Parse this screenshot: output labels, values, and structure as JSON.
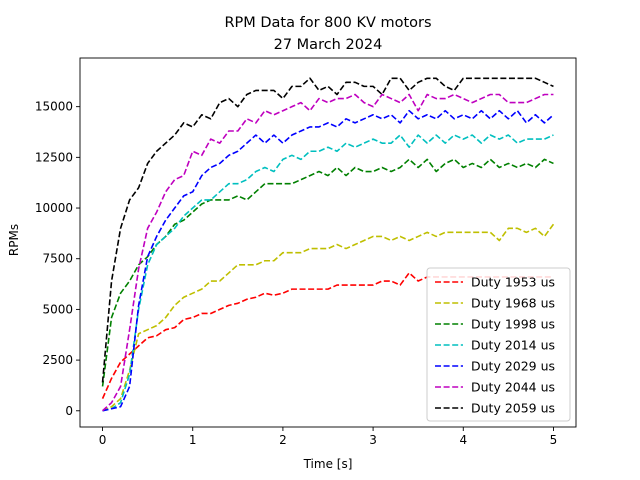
{
  "chart_data": {
    "type": "line",
    "title": "RPM Data for 800 KV motors",
    "subtitle": "27 March 2024",
    "xlabel": "Time [s]",
    "ylabel": "RPMs",
    "xlim": [
      -0.25,
      5.25
    ],
    "ylim": [
      -800,
      17400
    ],
    "x_ticks": [
      0,
      1,
      2,
      3,
      4,
      5
    ],
    "x_tick_labels": [
      "0",
      "1",
      "2",
      "3",
      "4",
      "5"
    ],
    "y_ticks": [
      0,
      2500,
      5000,
      7500,
      10000,
      12500,
      15000
    ],
    "y_tick_labels": [
      "0",
      "2500",
      "5000",
      "7500",
      "10000",
      "12500",
      "15000"
    ],
    "grid": false,
    "legend_position": "bottom-right",
    "line_style": "dashed",
    "x": [
      0,
      0.1,
      0.2,
      0.3,
      0.4,
      0.5,
      0.6,
      0.7,
      0.8,
      0.9,
      1.0,
      1.1,
      1.2,
      1.3,
      1.4,
      1.5,
      1.6,
      1.7,
      1.8,
      1.9,
      2.0,
      2.1,
      2.2,
      2.3,
      2.4,
      2.5,
      2.6,
      2.7,
      2.8,
      2.9,
      3.0,
      3.1,
      3.2,
      3.3,
      3.4,
      3.5,
      3.6,
      3.7,
      3.8,
      3.9,
      4.0,
      4.1,
      4.2,
      4.3,
      4.4,
      4.5,
      4.6,
      4.7,
      4.8,
      4.9,
      5.0
    ],
    "series": [
      {
        "name": "Duty 1953 us",
        "color": "#ff0000",
        "values": [
          600,
          1600,
          2400,
          2800,
          3200,
          3600,
          3700,
          4000,
          4100,
          4500,
          4600,
          4800,
          4800,
          5000,
          5200,
          5300,
          5500,
          5600,
          5800,
          5700,
          5800,
          6000,
          6000,
          6000,
          6000,
          6000,
          6200,
          6200,
          6200,
          6200,
          6200,
          6400,
          6400,
          6200,
          6800,
          6400,
          6600,
          6600,
          6600,
          6600,
          6600,
          6600,
          6600,
          6600,
          6600,
          6600,
          6600,
          6600,
          6600,
          6600,
          6600
        ]
      },
      {
        "name": "Duty 1968 us",
        "color": "#bfbf00",
        "values": [
          0,
          200,
          600,
          2000,
          3800,
          4000,
          4200,
          4600,
          5200,
          5600,
          5800,
          6000,
          6400,
          6400,
          6800,
          7200,
          7200,
          7200,
          7400,
          7400,
          7800,
          7800,
          7800,
          8000,
          8000,
          8000,
          8200,
          8000,
          8200,
          8400,
          8600,
          8600,
          8400,
          8600,
          8400,
          8600,
          8800,
          8600,
          8800,
          8800,
          8800,
          8800,
          8800,
          8800,
          8400,
          9000,
          9000,
          8800,
          9000,
          8600,
          9200
        ]
      },
      {
        "name": "Duty 1998 us",
        "color": "#008000",
        "values": [
          1200,
          4600,
          5800,
          6400,
          7200,
          7600,
          8200,
          8600,
          9200,
          9400,
          9800,
          10200,
          10400,
          10400,
          10400,
          10600,
          10400,
          10800,
          11200,
          11200,
          11200,
          11200,
          11400,
          11600,
          11800,
          11600,
          12000,
          11600,
          12000,
          11800,
          11800,
          12000,
          11800,
          12000,
          12400,
          12000,
          12400,
          11800,
          12200,
          12400,
          12000,
          12200,
          12000,
          12400,
          12000,
          12200,
          12000,
          12200,
          12000,
          12400,
          12200
        ]
      },
      {
        "name": "Duty 2014 us",
        "color": "#00bfbf",
        "values": [
          0,
          100,
          400,
          1800,
          5000,
          7200,
          8200,
          8600,
          9000,
          9600,
          10000,
          10400,
          10400,
          10800,
          11200,
          11200,
          11400,
          11800,
          12000,
          11800,
          12400,
          12600,
          12400,
          12800,
          12800,
          13000,
          12800,
          13200,
          13000,
          13200,
          13400,
          13200,
          13200,
          13600,
          13000,
          13600,
          13200,
          13600,
          13200,
          13600,
          13400,
          13600,
          13200,
          13600,
          13400,
          13600,
          13200,
          13400,
          13400,
          13400,
          13600
        ]
      },
      {
        "name": "Duty 2029 us",
        "color": "#0000ff",
        "values": [
          0,
          100,
          200,
          1200,
          5200,
          7600,
          8600,
          9400,
          10000,
          10600,
          10800,
          11600,
          12000,
          12200,
          12600,
          12800,
          13200,
          13600,
          13200,
          13600,
          13200,
          13600,
          13800,
          14000,
          14000,
          14200,
          14000,
          14400,
          14200,
          14400,
          14600,
          14400,
          14600,
          14200,
          14800,
          14400,
          14600,
          14400,
          14800,
          14400,
          14600,
          14400,
          14800,
          14400,
          14800,
          14400,
          14800,
          14200,
          14600,
          14200,
          14600
        ]
      },
      {
        "name": "Duty 2044 us",
        "color": "#bf00bf",
        "values": [
          0,
          400,
          1200,
          4000,
          7000,
          9000,
          9800,
          10800,
          11400,
          11600,
          12800,
          12600,
          13400,
          13200,
          13800,
          13800,
          14400,
          14200,
          14800,
          14600,
          14800,
          15000,
          15200,
          14800,
          15400,
          15200,
          15400,
          15400,
          15600,
          15200,
          15000,
          15600,
          15400,
          15200,
          15600,
          14800,
          15600,
          15400,
          15400,
          15600,
          15400,
          15200,
          15400,
          15600,
          15600,
          15200,
          15200,
          15200,
          15400,
          15600,
          15600
        ]
      },
      {
        "name": "Duty 2059 us",
        "color": "#000000",
        "values": [
          1400,
          6400,
          9000,
          10400,
          11000,
          12200,
          12800,
          13200,
          13600,
          14200,
          14000,
          14600,
          14400,
          15200,
          15400,
          15000,
          15600,
          15800,
          15800,
          15800,
          15400,
          16000,
          16000,
          16400,
          15800,
          16000,
          15600,
          16200,
          16200,
          16000,
          16000,
          15600,
          16400,
          16400,
          15800,
          16200,
          16400,
          16400,
          16000,
          15800,
          16400,
          16400,
          16400,
          16400,
          16400,
          16400,
          16400,
          16400,
          16400,
          16200,
          16000
        ]
      }
    ]
  }
}
